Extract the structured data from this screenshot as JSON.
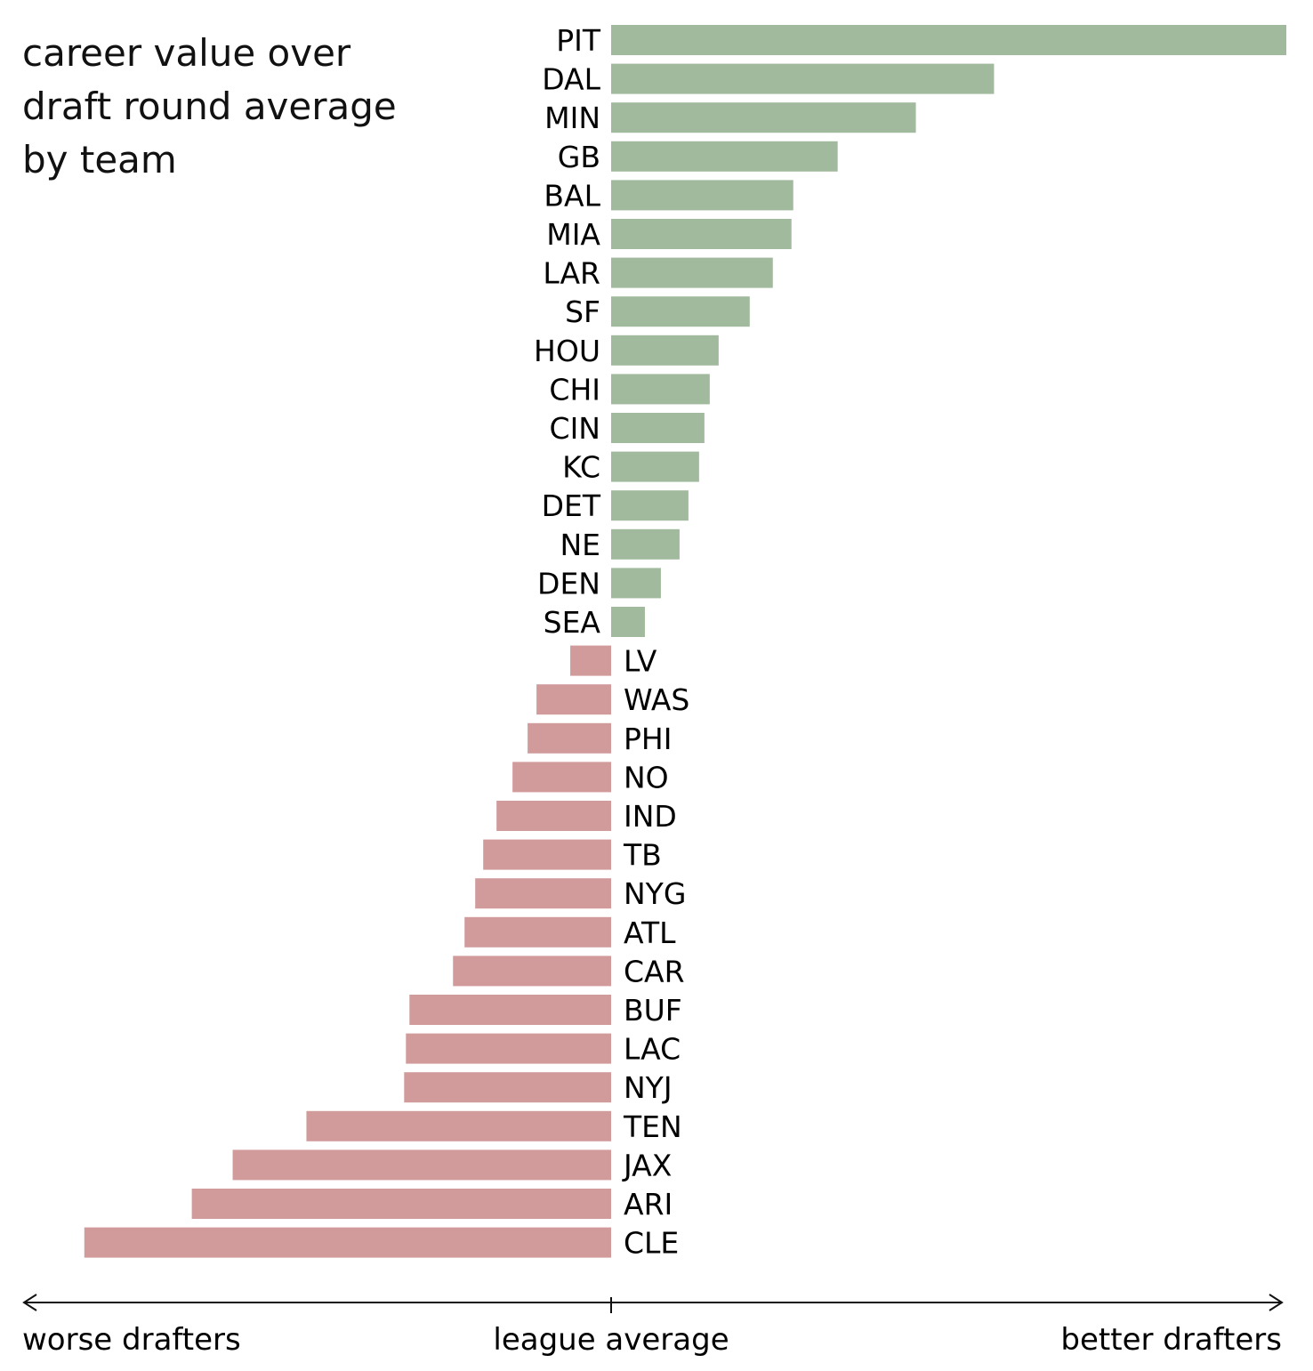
{
  "chart_data": {
    "type": "bar",
    "orientation": "horizontal",
    "title_lines": [
      "career value over",
      "draft round average",
      "by team"
    ],
    "categories": [
      "PIT",
      "DAL",
      "MIN",
      "GB",
      "BAL",
      "MIA",
      "LAR",
      "SF",
      "HOU",
      "CHI",
      "CIN",
      "KC",
      "DET",
      "NE",
      "DEN",
      "SEA",
      "LV",
      "WAS",
      "PHI",
      "NO",
      "IND",
      "TB",
      "NYG",
      "ATL",
      "CAR",
      "BUF",
      "LAC",
      "NYJ",
      "TEN",
      "JAX",
      "ARI",
      "CLE"
    ],
    "values": [
      760,
      431,
      343,
      255,
      205,
      203,
      182,
      156,
      121,
      111,
      105,
      99,
      87,
      77,
      56,
      38,
      -46,
      -84,
      -94,
      -111,
      -129,
      -144,
      -153,
      -165,
      -178,
      -227,
      -231,
      -233,
      -343,
      -426,
      -472,
      -593
    ],
    "xlim": [
      -660,
      760
    ],
    "positive_color": "#a1ba9d",
    "negative_color": "#d19a9b",
    "axis": {
      "left_label": "worse drafters",
      "center_label": "league average",
      "right_label": "better drafters"
    }
  }
}
